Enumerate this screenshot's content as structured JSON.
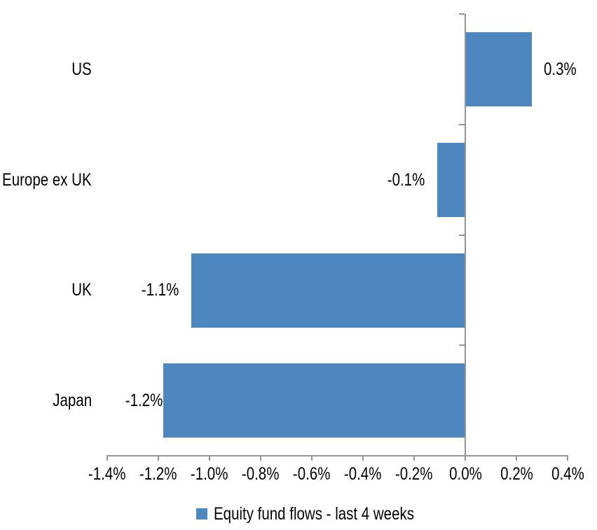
{
  "chart_data": {
    "type": "bar",
    "orientation": "horizontal",
    "title": "",
    "categories": [
      "US",
      "Europe ex UK",
      "UK",
      "Japan"
    ],
    "series": [
      {
        "name": "Equity fund flows - last 4 weeks",
        "values": [
          0.3,
          -0.1,
          -1.1,
          -1.2
        ],
        "value_labels": [
          "0.3%",
          "-0.1%",
          "-1.1%",
          "-1.2%"
        ],
        "bar_extents_pct_estimated": [
          0.26,
          -0.11,
          -1.07,
          -1.18
        ],
        "color": "#4E87BE"
      }
    ],
    "xlabel": "",
    "ylabel": "",
    "xlim": [
      -1.4,
      0.4
    ],
    "x_tick_values": [
      -1.4,
      -1.2,
      -1.0,
      -0.8,
      -0.6,
      -0.4,
      -0.2,
      0.0,
      0.2,
      0.4
    ],
    "x_tick_labels": [
      "-1.4%",
      "-1.2%",
      "-1.0%",
      "-0.8%",
      "-0.6%",
      "-0.4%",
      "-0.2%",
      "0.0%",
      "0.2%",
      "0.4%"
    ],
    "value_label_position": "outside-end",
    "grid": false,
    "legend": {
      "position": "bottom",
      "items": [
        {
          "label": "Equity fund flows - last 4 weeks",
          "swatch_color": "#4E87BE"
        }
      ]
    },
    "colors": {
      "bar": "#4E87BE",
      "axis_line": "#959595",
      "text": "#000000",
      "background": "#FFFFFF"
    }
  }
}
